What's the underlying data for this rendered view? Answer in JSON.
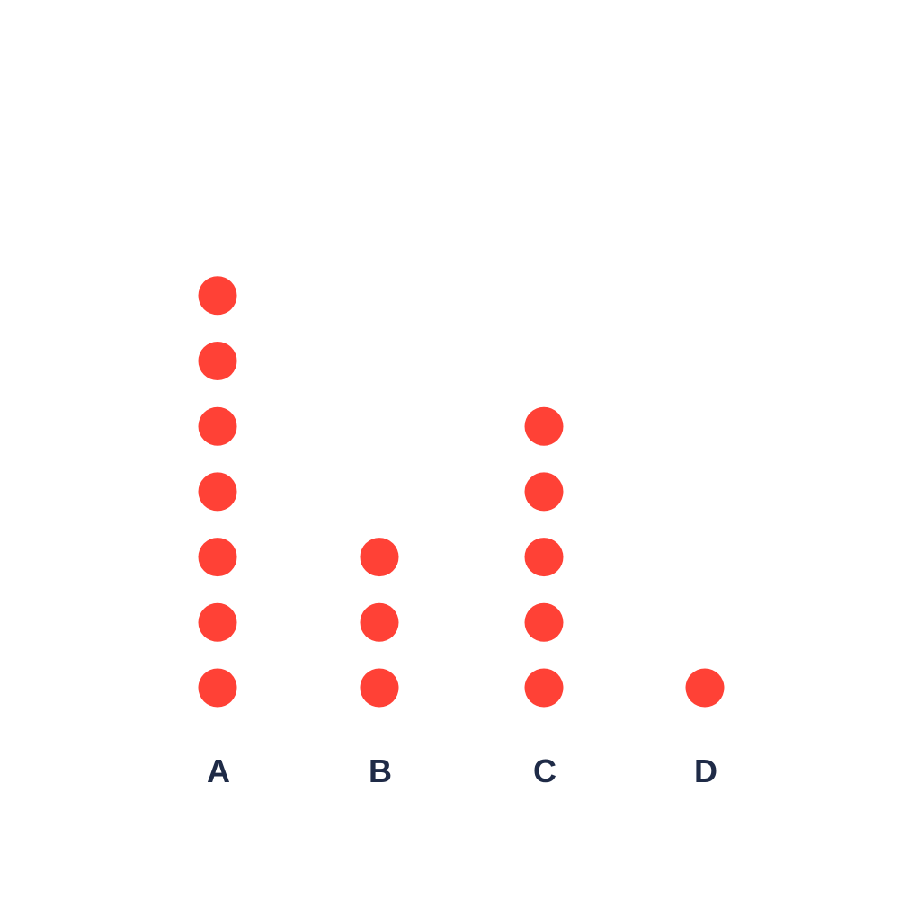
{
  "chart_data": {
    "type": "dot-plot",
    "categories": [
      "A",
      "B",
      "C",
      "D"
    ],
    "values": [
      7,
      3,
      5,
      1
    ],
    "colors": {
      "dot": "#ff4136",
      "label": "#1f2b47",
      "background": "#ffffff"
    }
  }
}
